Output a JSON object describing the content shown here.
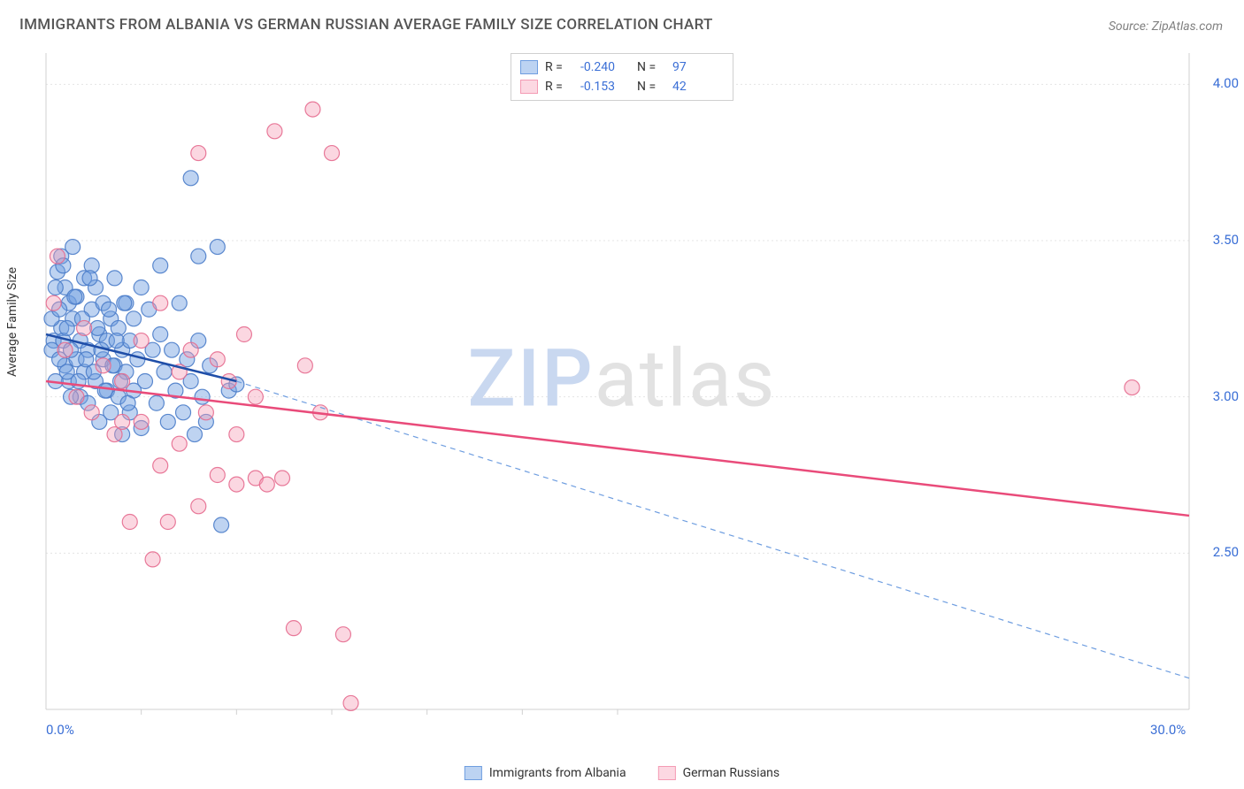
{
  "title": "IMMIGRANTS FROM ALBANIA VS GERMAN RUSSIAN AVERAGE FAMILY SIZE CORRELATION CHART",
  "source": "Source: ZipAtlas.com",
  "ylabel": "Average Family Size",
  "watermark": {
    "part1": "ZIP",
    "part2": "atlas"
  },
  "chart": {
    "type": "scatter",
    "xlim": [
      0,
      30
    ],
    "ylim": [
      2.0,
      4.1
    ],
    "x_ticks_major": [
      0,
      30
    ],
    "x_tick_labels": [
      "0.0%",
      "30.0%"
    ],
    "x_ticks_minor": [
      2.5,
      5,
      7.5,
      10,
      12.5,
      15
    ],
    "y_ticks": [
      2.5,
      3.0,
      3.5,
      4.0
    ],
    "y_tick_labels": [
      "2.50",
      "3.00",
      "3.50",
      "4.00"
    ],
    "grid_color": "#e4e4e4",
    "axis_color": "#d0d0d0",
    "background_color": "#ffffff",
    "series": [
      {
        "name": "Immigrants from Albania",
        "key": "albania",
        "fill": "#6f9ee0",
        "fill_opacity": 0.45,
        "stroke": "#4a7cc9",
        "r_value": "-0.240",
        "n_value": "97",
        "legend_swatch_fill": "#bcd3f2",
        "legend_swatch_border": "#6f9ee0",
        "trend": {
          "x1": 0,
          "y1": 3.2,
          "x2": 5,
          "y2": 3.05,
          "color": "#1f4ea8",
          "width": 2.5
        },
        "trend_extension": {
          "x1": 5,
          "y1": 3.05,
          "x2": 30,
          "y2": 2.1,
          "color": "#6f9ee0",
          "dash": "6,5",
          "width": 1.2
        },
        "points": [
          [
            0.2,
            3.18
          ],
          [
            0.3,
            3.4
          ],
          [
            0.4,
            3.45
          ],
          [
            0.4,
            3.22
          ],
          [
            0.5,
            3.35
          ],
          [
            0.5,
            3.1
          ],
          [
            0.6,
            3.3
          ],
          [
            0.6,
            3.05
          ],
          [
            0.7,
            3.25
          ],
          [
            0.7,
            3.48
          ],
          [
            0.8,
            3.12
          ],
          [
            0.8,
            3.32
          ],
          [
            0.9,
            3.18
          ],
          [
            0.9,
            3.0
          ],
          [
            1.0,
            3.08
          ],
          [
            1.0,
            3.38
          ],
          [
            1.1,
            3.15
          ],
          [
            1.1,
            2.98
          ],
          [
            1.2,
            3.28
          ],
          [
            1.2,
            3.42
          ],
          [
            1.3,
            3.05
          ],
          [
            1.3,
            3.35
          ],
          [
            1.4,
            3.2
          ],
          [
            1.4,
            2.92
          ],
          [
            1.5,
            3.12
          ],
          [
            1.5,
            3.3
          ],
          [
            1.6,
            3.02
          ],
          [
            1.6,
            3.18
          ],
          [
            1.7,
            3.25
          ],
          [
            1.7,
            2.95
          ],
          [
            1.8,
            3.1
          ],
          [
            1.8,
            3.38
          ],
          [
            1.9,
            3.0
          ],
          [
            1.9,
            3.22
          ],
          [
            2.0,
            3.15
          ],
          [
            2.0,
            2.88
          ],
          [
            2.1,
            3.08
          ],
          [
            2.1,
            3.3
          ],
          [
            2.2,
            3.18
          ],
          [
            2.2,
            2.95
          ],
          [
            2.3,
            3.02
          ],
          [
            2.3,
            3.25
          ],
          [
            2.4,
            3.12
          ],
          [
            2.5,
            3.35
          ],
          [
            2.5,
            2.9
          ],
          [
            2.6,
            3.05
          ],
          [
            2.7,
            3.28
          ],
          [
            2.8,
            3.15
          ],
          [
            2.9,
            2.98
          ],
          [
            3.0,
            3.2
          ],
          [
            3.0,
            3.42
          ],
          [
            3.1,
            3.08
          ],
          [
            3.2,
            2.92
          ],
          [
            3.3,
            3.15
          ],
          [
            3.4,
            3.02
          ],
          [
            3.5,
            3.3
          ],
          [
            3.6,
            2.95
          ],
          [
            3.7,
            3.12
          ],
          [
            3.8,
            3.05
          ],
          [
            3.9,
            2.88
          ],
          [
            4.0,
            3.18
          ],
          [
            4.0,
            3.45
          ],
          [
            4.1,
            3.0
          ],
          [
            4.2,
            2.92
          ],
          [
            4.3,
            3.1
          ],
          [
            4.5,
            3.48
          ],
          [
            4.6,
            2.59
          ],
          [
            4.8,
            3.02
          ],
          [
            5.0,
            3.04
          ],
          [
            3.8,
            3.7
          ],
          [
            0.15,
            3.15
          ],
          [
            0.15,
            3.25
          ],
          [
            0.25,
            3.35
          ],
          [
            0.25,
            3.05
          ],
          [
            0.35,
            3.12
          ],
          [
            0.35,
            3.28
          ],
          [
            0.45,
            3.18
          ],
          [
            0.45,
            3.42
          ],
          [
            0.55,
            3.08
          ],
          [
            0.55,
            3.22
          ],
          [
            0.65,
            3.15
          ],
          [
            0.65,
            3.0
          ],
          [
            0.75,
            3.32
          ],
          [
            0.85,
            3.05
          ],
          [
            0.95,
            3.25
          ],
          [
            1.05,
            3.12
          ],
          [
            1.15,
            3.38
          ],
          [
            1.25,
            3.08
          ],
          [
            1.35,
            3.22
          ],
          [
            1.45,
            3.15
          ],
          [
            1.55,
            3.02
          ],
          [
            1.65,
            3.28
          ],
          [
            1.75,
            3.1
          ],
          [
            1.85,
            3.18
          ],
          [
            1.95,
            3.05
          ],
          [
            2.05,
            3.3
          ],
          [
            2.15,
            2.98
          ]
        ]
      },
      {
        "name": "German Russians",
        "key": "german_russians",
        "fill": "#f49bb4",
        "fill_opacity": 0.4,
        "stroke": "#e56b8f",
        "r_value": "-0.153",
        "n_value": "42",
        "legend_swatch_fill": "#fcd8e2",
        "legend_swatch_border": "#f49bb4",
        "trend": {
          "x1": 0,
          "y1": 3.05,
          "x2": 30,
          "y2": 2.62,
          "color": "#e94b7a",
          "width": 2.5
        },
        "points": [
          [
            0.3,
            3.45
          ],
          [
            0.5,
            3.15
          ],
          [
            0.8,
            3.0
          ],
          [
            1.0,
            3.22
          ],
          [
            1.2,
            2.95
          ],
          [
            1.5,
            3.1
          ],
          [
            1.8,
            2.88
          ],
          [
            2.0,
            3.05
          ],
          [
            2.2,
            2.6
          ],
          [
            2.5,
            2.92
          ],
          [
            2.8,
            2.48
          ],
          [
            3.0,
            3.3
          ],
          [
            3.2,
            2.6
          ],
          [
            3.5,
            2.85
          ],
          [
            3.8,
            3.15
          ],
          [
            4.0,
            3.78
          ],
          [
            4.2,
            2.95
          ],
          [
            4.5,
            2.75
          ],
          [
            4.8,
            3.05
          ],
          [
            5.0,
            2.72
          ],
          [
            5.2,
            3.2
          ],
          [
            5.5,
            2.74
          ],
          [
            5.8,
            2.72
          ],
          [
            6.0,
            3.85
          ],
          [
            6.2,
            2.74
          ],
          [
            6.5,
            2.26
          ],
          [
            6.8,
            3.1
          ],
          [
            7.0,
            3.92
          ],
          [
            7.2,
            2.95
          ],
          [
            7.5,
            3.78
          ],
          [
            7.8,
            2.24
          ],
          [
            8.0,
            2.02
          ],
          [
            2.0,
            2.92
          ],
          [
            2.5,
            3.18
          ],
          [
            3.0,
            2.78
          ],
          [
            3.5,
            3.08
          ],
          [
            4.0,
            2.65
          ],
          [
            4.5,
            3.12
          ],
          [
            5.0,
            2.88
          ],
          [
            5.5,
            3.0
          ],
          [
            28.5,
            3.03
          ],
          [
            0.2,
            3.3
          ]
        ]
      }
    ]
  },
  "legend_bottom": [
    {
      "label": "Immigrants from Albania",
      "series_key": "albania"
    },
    {
      "label": "German Russians",
      "series_key": "german_russians"
    }
  ]
}
